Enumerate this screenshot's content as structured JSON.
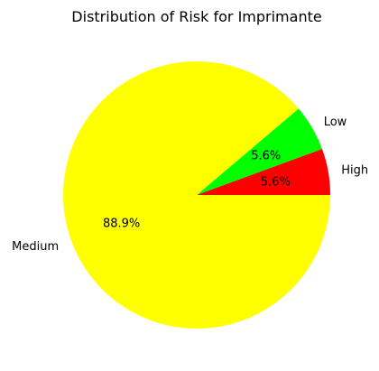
{
  "chart_data": {
    "type": "pie",
    "title": "Distribution of Risk for Imprimante",
    "categories": [
      "High",
      "Low",
      "Medium"
    ],
    "values": [
      5.6,
      5.6,
      88.9
    ],
    "percent_labels": [
      "5.6%",
      "5.6%",
      "88.9%"
    ],
    "colors": [
      "#ff0000",
      "#00ff00",
      "#ffff00"
    ],
    "start_angle_deg": 0,
    "direction": "counterclockwise"
  }
}
